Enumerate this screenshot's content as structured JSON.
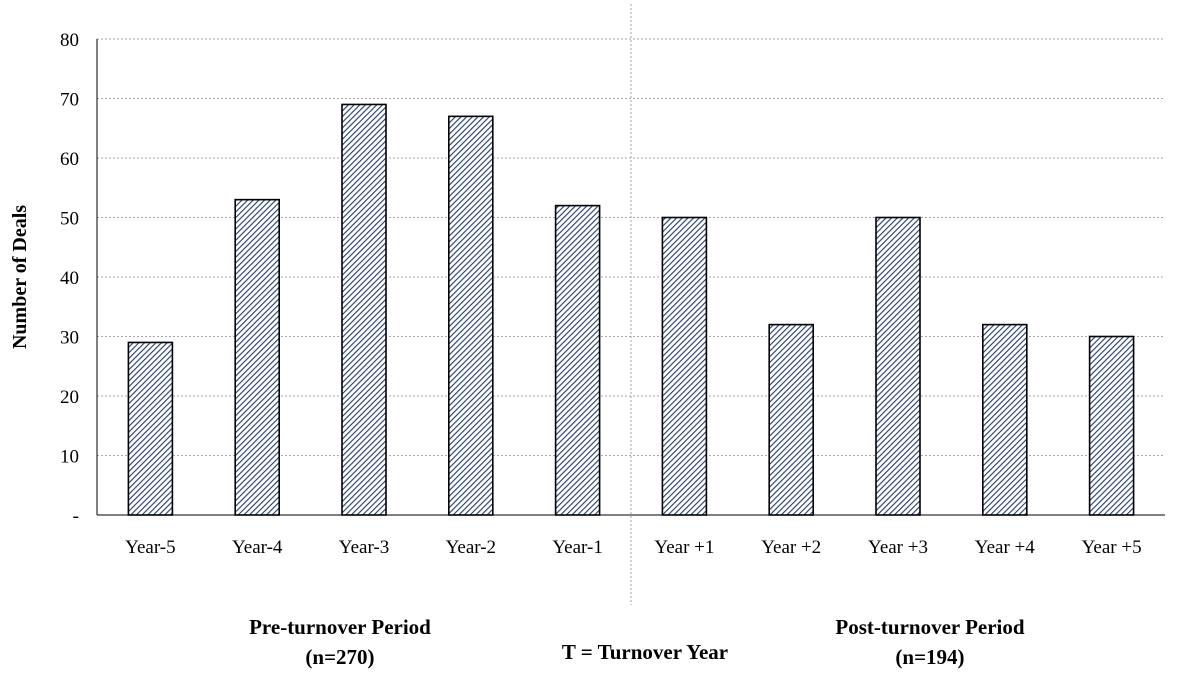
{
  "chart_data": {
    "type": "bar",
    "categories": [
      "Year-5",
      "Year-4",
      "Year-3",
      "Year-2",
      "Year-1",
      "Year +1",
      "Year +2",
      "Year +3",
      "Year +4",
      "Year +5"
    ],
    "values": [
      29,
      53,
      69,
      67,
      52,
      50,
      32,
      50,
      32,
      30
    ],
    "ylabel": "Number of Deals",
    "ylim": [
      0,
      80
    ],
    "yticks": [
      0,
      10,
      20,
      30,
      40,
      50,
      60,
      70,
      80
    ],
    "ytick_labels": [
      "-",
      "10",
      "20",
      "30",
      "40",
      "50",
      "60",
      "70",
      "80"
    ],
    "grid": true,
    "bar_pattern": "diagonal-hatch",
    "colors": {
      "hatch": "#1f3a6b",
      "bar_border": "#000000",
      "grid": "#a6a6a6"
    }
  },
  "annotations": {
    "pre_period": "Pre-turnover Period",
    "pre_count": "(n=270)",
    "turnover": "T = Turnover Year",
    "post_period": "Post-turnover Period",
    "post_count": "(n=194)"
  }
}
